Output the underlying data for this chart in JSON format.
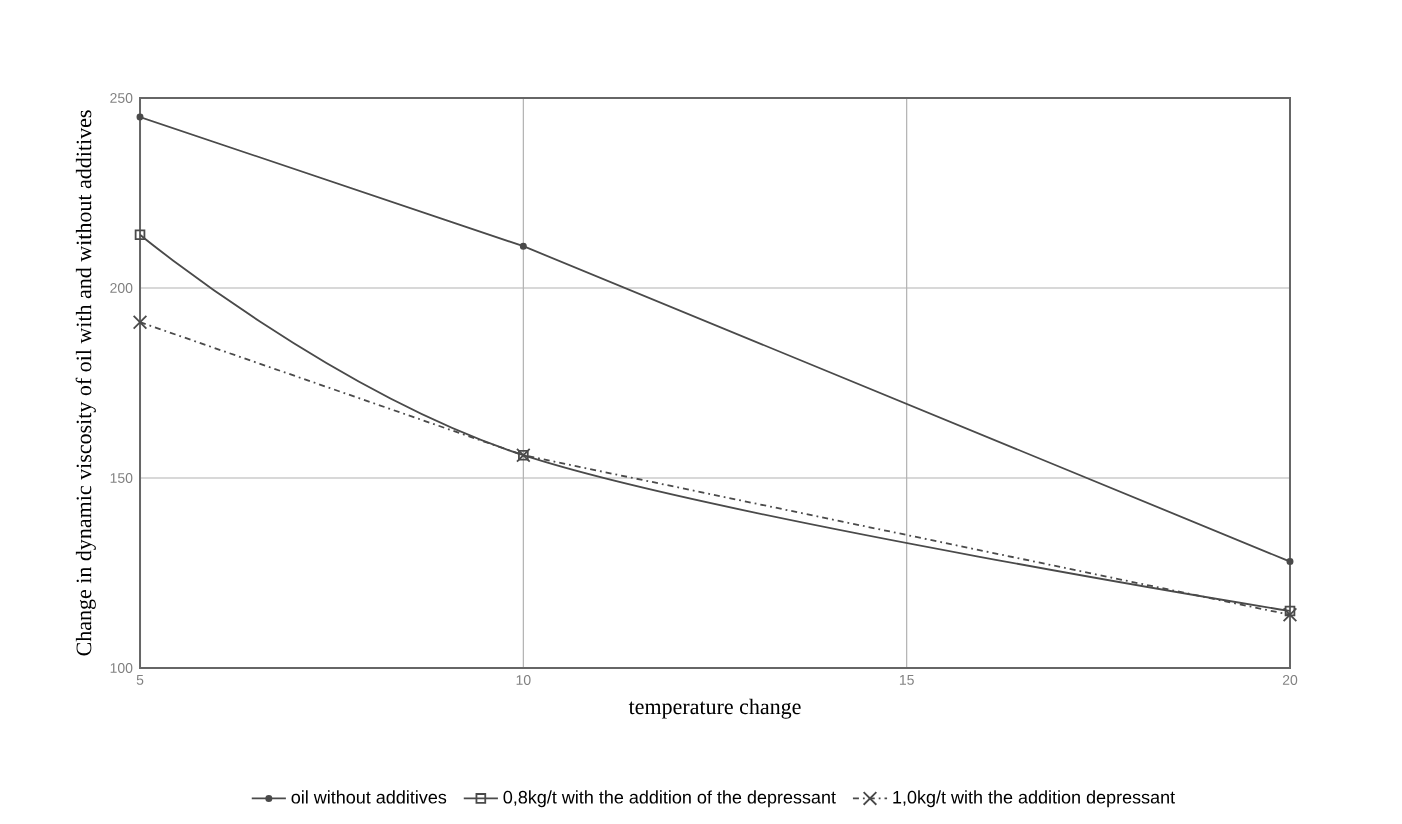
{
  "chart_data": {
    "type": "line",
    "xlabel": "temperature change",
    "ylabel": "Change in dynamic viscosity of oil with and without additives",
    "x": [
      5,
      10,
      20
    ],
    "xlim": [
      5,
      20
    ],
    "xticks": [
      5,
      10,
      15,
      20
    ],
    "ylim": [
      100,
      250
    ],
    "yticks": [
      100,
      150,
      200,
      250
    ],
    "grid": true,
    "legend": "bottom",
    "series": [
      {
        "name": "oil without additives",
        "color": "#4a4a4a",
        "values": [
          245,
          211,
          128
        ],
        "marker": "circle",
        "line_style": "solid"
      },
      {
        "name": "0,8kg/t with the addition of the depressant",
        "color": "#4a4a4a",
        "values": [
          214,
          156,
          115
        ],
        "marker": "square",
        "line_style": "solid"
      },
      {
        "name": "1,0kg/t with the addition depressant",
        "color": "#4a4a4a",
        "values": [
          191,
          156,
          114
        ],
        "marker": "cross",
        "line_style": "dashed"
      }
    ]
  }
}
